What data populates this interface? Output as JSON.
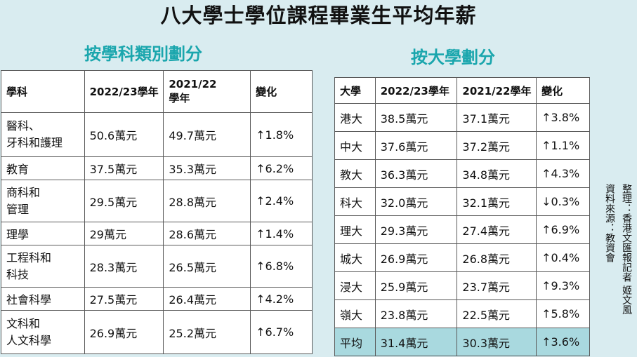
{
  "title": "八大學士學位課程畢業生平均年薪",
  "left": {
    "section_title": "按學科類別劃分",
    "headers": [
      "學科",
      "2022/23學年",
      "2021/22\n學年",
      "變化"
    ],
    "rows": [
      {
        "subject": "醫科、\n牙科和護理",
        "y2223": "50.6萬元",
        "y2122": "49.7萬元",
        "change": "↑1.8%"
      },
      {
        "subject": "教育",
        "y2223": "37.5萬元",
        "y2122": "35.3萬元",
        "change": "↑6.2%"
      },
      {
        "subject": "商科和\n管理",
        "y2223": "29.5萬元",
        "y2122": "28.8萬元",
        "change": "↑2.4%"
      },
      {
        "subject": "理學",
        "y2223": "29萬元",
        "y2122": "28.6萬元",
        "change": "↑1.4%"
      },
      {
        "subject": "工程科和\n科技",
        "y2223": "28.3萬元",
        "y2122": "26.5萬元",
        "change": "↑6.8%"
      },
      {
        "subject": "社會科學",
        "y2223": "27.5萬元",
        "y2122": "26.4萬元",
        "change": "↑4.2%"
      },
      {
        "subject": "文科和\n人文科學",
        "y2223": "26.9萬元",
        "y2122": "25.2萬元",
        "change": "↑6.7%"
      }
    ]
  },
  "right": {
    "section_title": "按大學劃分",
    "headers": [
      "大學",
      "2022/23學年",
      "2021/22學年",
      "變化"
    ],
    "rows": [
      {
        "uni": "港大",
        "y2223": "38.5萬元",
        "y2122": "37.1萬元",
        "change": "↑3.8%"
      },
      {
        "uni": "中大",
        "y2223": "37.6萬元",
        "y2122": "37.2萬元",
        "change": "↑1.1%"
      },
      {
        "uni": "教大",
        "y2223": "36.3萬元",
        "y2122": "34.8萬元",
        "change": "↑4.3%"
      },
      {
        "uni": "科大",
        "y2223": "32.0萬元",
        "y2122": "32.1萬元",
        "change": "↓0.3%"
      },
      {
        "uni": "理大",
        "y2223": "29.3萬元",
        "y2122": "27.4萬元",
        "change": "↑6.9%"
      },
      {
        "uni": "城大",
        "y2223": "26.9萬元",
        "y2122": "26.8萬元",
        "change": "↑0.4%"
      },
      {
        "uni": "浸大",
        "y2223": "25.9萬元",
        "y2122": "23.7萬元",
        "change": "↑9.3%"
      },
      {
        "uni": "嶺大",
        "y2223": "23.8萬元",
        "y2122": "22.5萬元",
        "change": "↑5.8%"
      },
      {
        "uni": "平均",
        "y2223": "31.4萬元",
        "y2122": "30.3萬元",
        "change": "↑3.6%"
      }
    ]
  },
  "credits": {
    "compiled_by": "整理：香港文匯報記者 姬文風",
    "source": "資料來源：教資會"
  },
  "colors": {
    "background": "#d9ecf0",
    "accent": "#1aa6ad",
    "highlight_row": "#a9d9df"
  }
}
